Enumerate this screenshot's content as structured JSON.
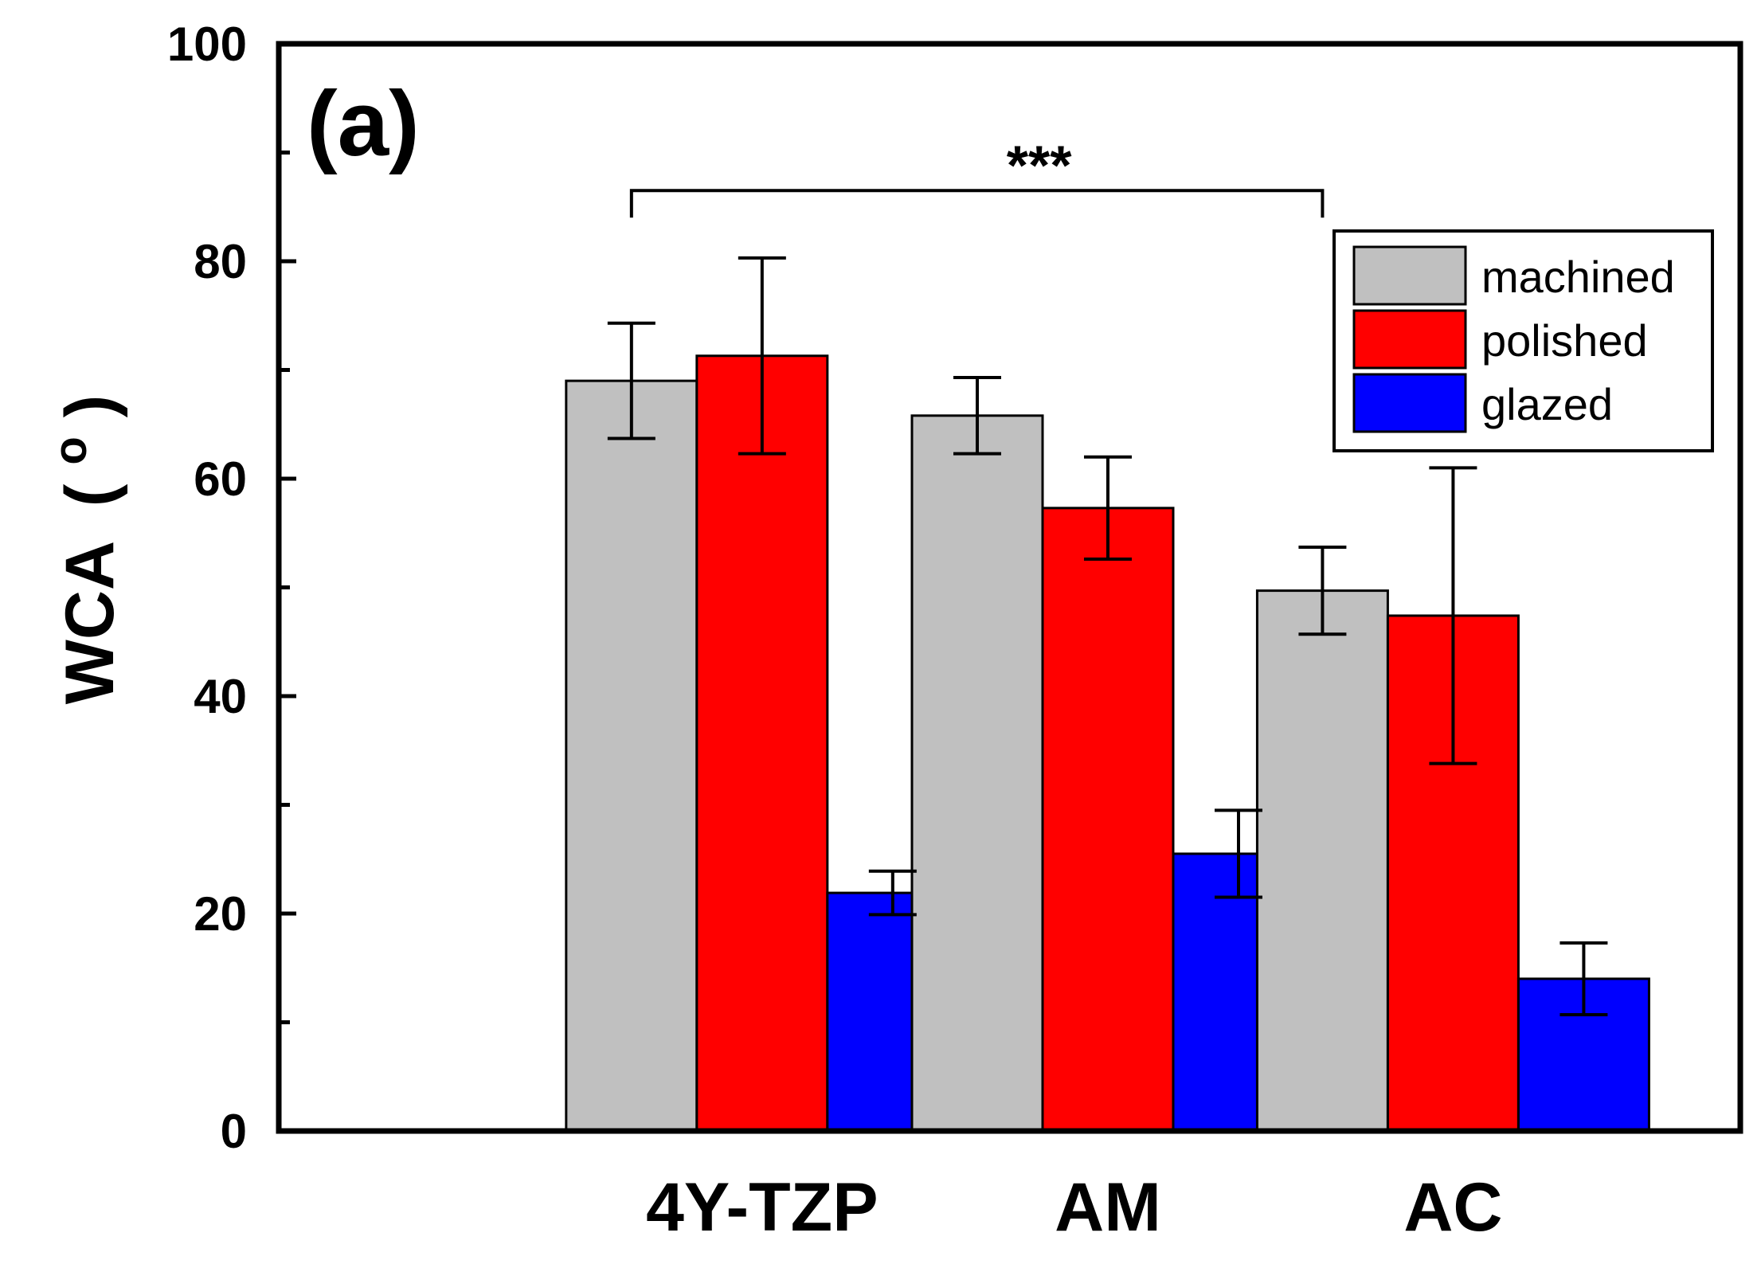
{
  "chart_data": {
    "type": "bar",
    "panel_label": "(a)",
    "ylabel": "WCA",
    "ylabel_unit_base": "(",
    "ylabel_unit_sup": "o",
    "ylabel_unit_close": ")",
    "ylim": [
      0,
      100
    ],
    "y_ticks": [
      "0",
      "20",
      "40",
      "60",
      "80",
      "100"
    ],
    "categories": [
      "4Y-TZP",
      "AM",
      "AC"
    ],
    "series": [
      {
        "name": "machined",
        "color": "#c0c0c0",
        "values": [
          69.0,
          65.8,
          49.7
        ],
        "errors": [
          5.3,
          3.5,
          4.0
        ]
      },
      {
        "name": "polished",
        "color": "#ff0000",
        "values": [
          71.3,
          57.3,
          47.4
        ],
        "errors": [
          9.0,
          4.7,
          13.6
        ]
      },
      {
        "name": "glazed",
        "color": "#0000ff",
        "values": [
          21.9,
          25.5,
          14.0
        ],
        "errors": [
          2.0,
          4.0,
          3.3
        ]
      }
    ],
    "significance": {
      "label": "***",
      "from_category": "4Y-TZP",
      "to_category": "AC",
      "level": 86.5
    },
    "legend_position": "top-right"
  }
}
